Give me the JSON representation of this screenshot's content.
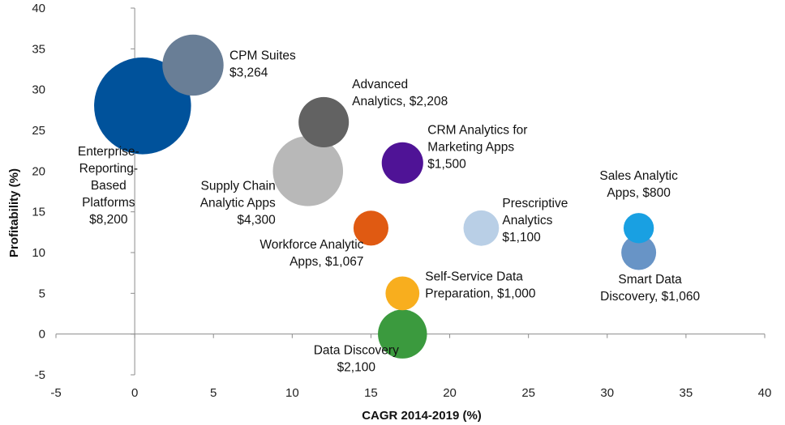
{
  "chart_data": {
    "type": "scatter",
    "title": "",
    "xlabel": "CAGR 2014-2019 (%)",
    "ylabel": "Profitability (%)",
    "xlim": [
      -5,
      40
    ],
    "ylim": [
      -5,
      40
    ],
    "x_ticks": [
      "-5",
      "0",
      "5",
      "10",
      "15",
      "20",
      "25",
      "30",
      "35",
      "40"
    ],
    "y_ticks": [
      "-5",
      "0",
      "5",
      "10",
      "15",
      "20",
      "25",
      "30",
      "35",
      "40"
    ],
    "grid": false,
    "legend": "none",
    "bubbles": [
      {
        "label": [
          "Enterprise-",
          "Reporting-",
          "Based",
          "Platforms",
          "$8,200"
        ],
        "x": 0.5,
        "y": 28,
        "size": 8200,
        "color": "#00529B"
      },
      {
        "label": [
          "CPM Suites",
          "$3,264"
        ],
        "x": 3.7,
        "y": 33,
        "size": 3264,
        "color": "#697E96"
      },
      {
        "label": [
          "Advanced",
          "Analytics, $2,208"
        ],
        "x": 12,
        "y": 26,
        "size": 2208,
        "color": "#626262"
      },
      {
        "label": [
          "Supply Chain",
          "Analytic Apps",
          "$4,300"
        ],
        "x": 11,
        "y": 20,
        "size": 4300,
        "color": "#B8B8B8"
      },
      {
        "label": [
          "CRM Analytics for",
          "Marketing Apps",
          "$1,500"
        ],
        "x": 17,
        "y": 21,
        "size": 1500,
        "color": "#4F1396"
      },
      {
        "label": [
          "Workforce Analytic",
          "Apps, $1,067"
        ],
        "x": 15,
        "y": 13,
        "size": 1067,
        "color": "#E05A12"
      },
      {
        "label": [
          "Prescriptive",
          "Analytics",
          "$1,100"
        ],
        "x": 22,
        "y": 13,
        "size": 1100,
        "color": "#B9CFE6"
      },
      {
        "label": [
          "Sales Analytic",
          "Apps, $800"
        ],
        "x": 32,
        "y": 13,
        "size": 800,
        "color": "#19A0E2"
      },
      {
        "label": [
          "Smart Data",
          "Discovery, $1,060"
        ],
        "x": 32,
        "y": 10,
        "size": 1060,
        "color": "#6894C6"
      },
      {
        "label": [
          "Self-Service Data",
          "Preparation, $1,000"
        ],
        "x": 17,
        "y": 5,
        "size": 1000,
        "color": "#F8AE1E"
      },
      {
        "label": [
          "Data Discovery",
          "$2,100"
        ],
        "x": 17,
        "y": 0,
        "size": 2100,
        "color": "#3B9A3E"
      }
    ]
  }
}
